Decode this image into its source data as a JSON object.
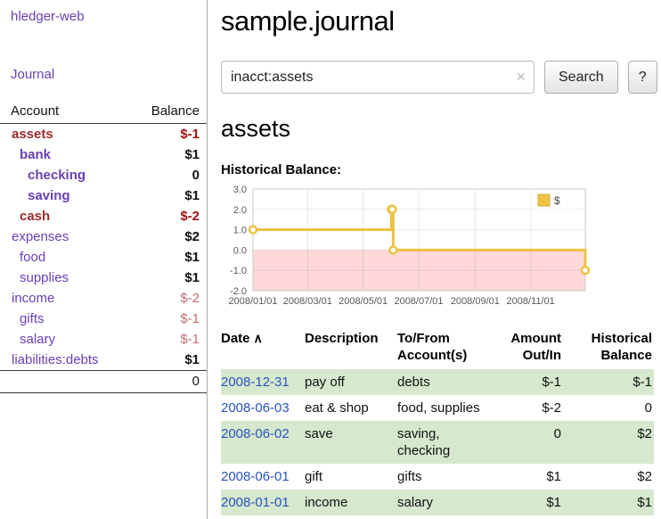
{
  "sidebar": {
    "app_title": "hledger-web",
    "nav": {
      "journal": "Journal"
    },
    "accounts": {
      "header": {
        "account": "Account",
        "balance": "Balance"
      },
      "rows": [
        {
          "name": "assets",
          "balance": "$-1",
          "indent": 0,
          "style": "selected-neg",
          "balance_style": "neg-strong"
        },
        {
          "name": "bank",
          "balance": "$1",
          "indent": 1,
          "style": "selected",
          "balance_style": "strong"
        },
        {
          "name": "checking",
          "balance": "0",
          "indent": 2,
          "style": "selected",
          "balance_style": "strong"
        },
        {
          "name": "saving",
          "balance": "$1",
          "indent": 2,
          "style": "selected",
          "balance_style": "strong"
        },
        {
          "name": "cash",
          "balance": "$-2",
          "indent": 1,
          "style": "selected-neg",
          "balance_style": "neg-strong"
        },
        {
          "name": "expenses",
          "balance": "$2",
          "indent": 0,
          "style": "normal",
          "balance_style": "strong"
        },
        {
          "name": "food",
          "balance": "$1",
          "indent": 1,
          "style": "normal",
          "balance_style": "strong"
        },
        {
          "name": "supplies",
          "balance": "$1",
          "indent": 1,
          "style": "normal",
          "balance_style": "strong"
        },
        {
          "name": "income",
          "balance": "$-2",
          "indent": 0,
          "style": "normal",
          "balance_style": "neg-soft"
        },
        {
          "name": "gifts",
          "balance": "$-1",
          "indent": 1,
          "style": "normal",
          "balance_style": "neg-soft"
        },
        {
          "name": "salary",
          "balance": "$-1",
          "indent": 1,
          "style": "normal",
          "balance_style": "neg-soft"
        },
        {
          "name": "liabilities:debts",
          "balance": "$1",
          "indent": 0,
          "style": "normal",
          "balance_style": "strong"
        }
      ],
      "total": "0"
    }
  },
  "main": {
    "title": "sample.journal",
    "search": {
      "value": "inacct:assets",
      "clear_label": "×",
      "button_label": "Search",
      "help_label": "?"
    },
    "account_heading": "assets",
    "chart_title": "Historical Balance:",
    "register": {
      "headers": {
        "date": "Date",
        "sort_indicator": "∧",
        "description": "Description",
        "accounts": "To/From Account(s)",
        "amount": "Amount Out/In",
        "balance": "Historical Balance"
      },
      "rows": [
        {
          "date": "2008-12-31",
          "description": "pay off",
          "accounts": "debts",
          "amount": "$-1",
          "amount_negative": true,
          "balance": "$-1",
          "balance_negative": true,
          "shaded": true
        },
        {
          "date": "2008-06-03",
          "description": "eat & shop",
          "accounts": "food, supplies",
          "amount": "$-2",
          "amount_negative": true,
          "balance": "0",
          "balance_negative": false,
          "shaded": false
        },
        {
          "date": "2008-06-02",
          "description": "save",
          "accounts": "saving, checking",
          "amount": "0",
          "amount_negative": false,
          "balance": "$2",
          "balance_negative": false,
          "shaded": true
        },
        {
          "date": "2008-06-01",
          "description": "gift",
          "accounts": "gifts",
          "amount": "$1",
          "amount_negative": false,
          "balance": "$2",
          "balance_negative": false,
          "shaded": false
        },
        {
          "date": "2008-01-01",
          "description": "income",
          "accounts": "salary",
          "amount": "$1",
          "amount_negative": false,
          "balance": "$1",
          "balance_negative": false,
          "shaded": true
        }
      ]
    }
  },
  "chart_data": {
    "type": "line",
    "step": true,
    "title": "Historical Balance:",
    "series": [
      {
        "name": "$",
        "color": "#edc240",
        "points": [
          [
            "2008-01-01",
            1
          ],
          [
            "2008-06-01",
            2
          ],
          [
            "2008-06-02",
            2
          ],
          [
            "2008-06-03",
            0
          ],
          [
            "2008-12-31",
            -1
          ]
        ]
      }
    ],
    "x_ticks": [
      "2008/01/01",
      "2008/03/01",
      "2008/05/01",
      "2008/07/01",
      "2008/09/01",
      "2008/11/01"
    ],
    "y_ticks": [
      -2,
      -1,
      0,
      1,
      2,
      3
    ],
    "xlim": [
      "2008-01-01",
      "2008-12-31"
    ],
    "ylim": [
      -2,
      3
    ],
    "grid": true,
    "negative_region_color": "#ffd9d9",
    "legend_position": "top-right"
  },
  "colors": {
    "link_purple": "#6a3fb5",
    "negative_strong": "#a11212",
    "negative_soft": "#c0706f",
    "account_selected_negative": "#9e2b2b",
    "date_link_blue": "#2a53c0",
    "row_shade_green": "#d6e8ce",
    "chart_line_gold": "#edc240",
    "chart_negative_pink": "#ffd9d9"
  }
}
